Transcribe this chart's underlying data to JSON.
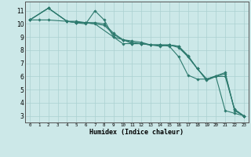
{
  "xlabel": "Humidex (Indice chaleur)",
  "background_color": "#cce8e8",
  "grid_color": "#aad0d0",
  "line_color": "#2d7a6e",
  "xlim": [
    -0.5,
    23.5
  ],
  "ylim": [
    2.5,
    11.7
  ],
  "xticks": [
    0,
    1,
    2,
    3,
    4,
    5,
    6,
    7,
    8,
    9,
    10,
    11,
    12,
    13,
    14,
    15,
    16,
    17,
    18,
    19,
    20,
    21,
    22,
    23
  ],
  "yticks": [
    3,
    4,
    5,
    6,
    7,
    8,
    9,
    10,
    11
  ],
  "series": [
    {
      "x": [
        0,
        1,
        2,
        4,
        5,
        6,
        7,
        8,
        9,
        10,
        11,
        12,
        13,
        14,
        15,
        16,
        17,
        18,
        19,
        20,
        21,
        22,
        23
      ],
      "y": [
        10.3,
        10.3,
        10.3,
        10.2,
        10.1,
        10.0,
        11.0,
        10.3,
        9.0,
        8.5,
        8.5,
        8.5,
        8.4,
        8.4,
        8.3,
        7.5,
        6.1,
        5.8,
        5.8,
        6.0,
        3.4,
        3.2,
        3.0
      ]
    },
    {
      "x": [
        0,
        2,
        4,
        5,
        6,
        7,
        8,
        9,
        10,
        11,
        12,
        13,
        14,
        15,
        16,
        17,
        18,
        19,
        20,
        21,
        22,
        23
      ],
      "y": [
        10.3,
        11.2,
        10.2,
        10.1,
        10.1,
        10.1,
        10.0,
        9.3,
        8.8,
        8.5,
        8.5,
        8.4,
        8.3,
        8.4,
        8.3,
        7.5,
        6.6,
        5.7,
        6.0,
        6.0,
        3.5,
        3.0
      ]
    },
    {
      "x": [
        0,
        2,
        4,
        5,
        6,
        7,
        9,
        10,
        11,
        12,
        13,
        14,
        15,
        16,
        17,
        18,
        19,
        21,
        22,
        23
      ],
      "y": [
        10.3,
        11.2,
        10.2,
        10.2,
        10.1,
        10.0,
        9.0,
        8.8,
        8.7,
        8.6,
        8.4,
        8.4,
        8.4,
        8.3,
        7.6,
        6.6,
        5.8,
        6.2,
        3.5,
        3.0
      ]
    },
    {
      "x": [
        0,
        2,
        4,
        5,
        6,
        8,
        9,
        10,
        11,
        12,
        13,
        14,
        15,
        16,
        17,
        18,
        19,
        21,
        22,
        23
      ],
      "y": [
        10.3,
        11.2,
        10.2,
        10.1,
        10.1,
        9.9,
        9.2,
        8.8,
        8.6,
        8.5,
        8.4,
        8.4,
        8.4,
        8.2,
        7.5,
        6.6,
        5.8,
        6.3,
        3.4,
        3.0
      ]
    }
  ]
}
